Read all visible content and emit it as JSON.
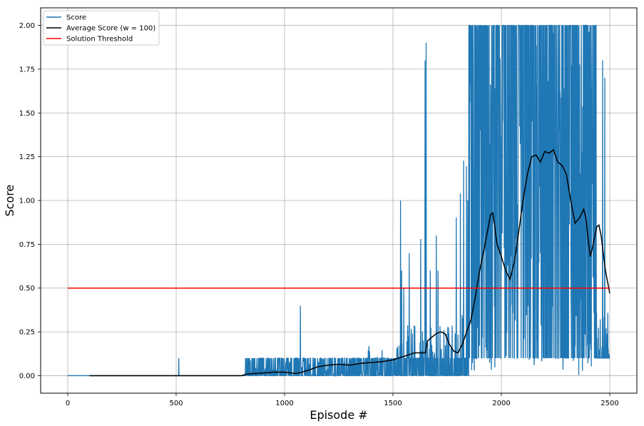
{
  "chart_data": {
    "type": "line",
    "xlabel": "Episode #",
    "ylabel": "Score",
    "xlim": [
      -125,
      2625
    ],
    "ylim": [
      -0.1,
      2.1
    ],
    "x_ticks": [
      0,
      500,
      1000,
      1500,
      2000,
      2500
    ],
    "x_tick_labels": [
      "0",
      "500",
      "1000",
      "1500",
      "2000",
      "2500"
    ],
    "y_ticks": [
      0.0,
      0.25,
      0.5,
      0.75,
      1.0,
      1.25,
      1.5,
      1.75,
      2.0
    ],
    "y_tick_labels": [
      "0.00",
      "0.25",
      "0.50",
      "0.75",
      "1.00",
      "1.25",
      "1.50",
      "1.75",
      "2.00"
    ],
    "grid": true,
    "legend_position": "top-left",
    "series": [
      {
        "name": "Score",
        "color": "#1f77b4",
        "segments": [
          {
            "x_start": 0,
            "x_end": 820,
            "low": 0.0,
            "high": 0.0
          },
          {
            "x_start": 820,
            "x_end": 1000,
            "low": 0.0,
            "high": 0.1
          },
          {
            "x_start": 1000,
            "x_end": 1380,
            "low": 0.0,
            "high": 0.1
          },
          {
            "x_start": 1380,
            "x_end": 1530,
            "low": 0.0,
            "high": 0.2
          },
          {
            "x_start": 1530,
            "x_end": 1790,
            "low": 0.0,
            "high": 0.3
          },
          {
            "x_start": 1790,
            "x_end": 1850,
            "low": 0.0,
            "high": 1.3
          },
          {
            "x_start": 1850,
            "x_end": 2000,
            "low": 0.0,
            "high": 2.0
          },
          {
            "x_start": 2000,
            "x_end": 2100,
            "low": 0.1,
            "high": 2.0
          },
          {
            "x_start": 2100,
            "x_end": 2320,
            "low": 0.0,
            "high": 2.0
          },
          {
            "x_start": 2320,
            "x_end": 2440,
            "low": 0.0,
            "high": 2.0
          },
          {
            "x_start": 2440,
            "x_end": 2500,
            "low": 0.1,
            "high": 0.4
          }
        ],
        "spikes": [
          {
            "x": 512,
            "y": 0.1
          },
          {
            "x": 1073,
            "y": 0.4
          },
          {
            "x": 1535,
            "y": 1.0
          },
          {
            "x": 1540,
            "y": 0.6
          },
          {
            "x": 1550,
            "y": 0.5
          },
          {
            "x": 1575,
            "y": 0.7
          },
          {
            "x": 1628,
            "y": 0.78
          },
          {
            "x": 1648,
            "y": 1.8
          },
          {
            "x": 1653,
            "y": 1.9
          },
          {
            "x": 1672,
            "y": 0.6
          },
          {
            "x": 1700,
            "y": 0.8
          },
          {
            "x": 1708,
            "y": 0.6
          },
          {
            "x": 2467,
            "y": 1.8
          },
          {
            "x": 2477,
            "y": 1.7
          }
        ]
      },
      {
        "name": "Average Score (w = 100)",
        "color": "#000000",
        "x": [
          100,
          500,
          800,
          830,
          900,
          950,
          1000,
          1050,
          1080,
          1120,
          1150,
          1200,
          1250,
          1300,
          1350,
          1400,
          1450,
          1500,
          1550,
          1600,
          1650,
          1660,
          1680,
          1700,
          1720,
          1740,
          1760,
          1780,
          1800,
          1820,
          1840,
          1860,
          1880,
          1900,
          1920,
          1940,
          1950,
          1960,
          1970,
          1980,
          2000,
          2020,
          2040,
          2060,
          2080,
          2100,
          2120,
          2140,
          2160,
          2180,
          2200,
          2220,
          2240,
          2260,
          2280,
          2300,
          2320,
          2340,
          2360,
          2380,
          2390,
          2400,
          2410,
          2420,
          2440,
          2450,
          2460,
          2480,
          2500
        ],
        "y": [
          0.0,
          0.0,
          0.0,
          0.01,
          0.015,
          0.02,
          0.02,
          0.012,
          0.02,
          0.035,
          0.05,
          0.06,
          0.065,
          0.06,
          0.07,
          0.075,
          0.08,
          0.09,
          0.11,
          0.13,
          0.13,
          0.2,
          0.22,
          0.24,
          0.25,
          0.24,
          0.18,
          0.14,
          0.13,
          0.18,
          0.25,
          0.32,
          0.45,
          0.6,
          0.72,
          0.85,
          0.92,
          0.93,
          0.85,
          0.75,
          0.68,
          0.6,
          0.55,
          0.65,
          0.82,
          1.0,
          1.15,
          1.25,
          1.26,
          1.22,
          1.28,
          1.27,
          1.29,
          1.22,
          1.2,
          1.15,
          1.0,
          0.87,
          0.9,
          0.95,
          0.9,
          0.78,
          0.68,
          0.73,
          0.85,
          0.86,
          0.8,
          0.6,
          0.47
        ]
      },
      {
        "name": "Solution Threshold",
        "color": "#ff0000",
        "x": [
          0,
          2500
        ],
        "y": [
          0.5,
          0.5
        ]
      }
    ]
  }
}
